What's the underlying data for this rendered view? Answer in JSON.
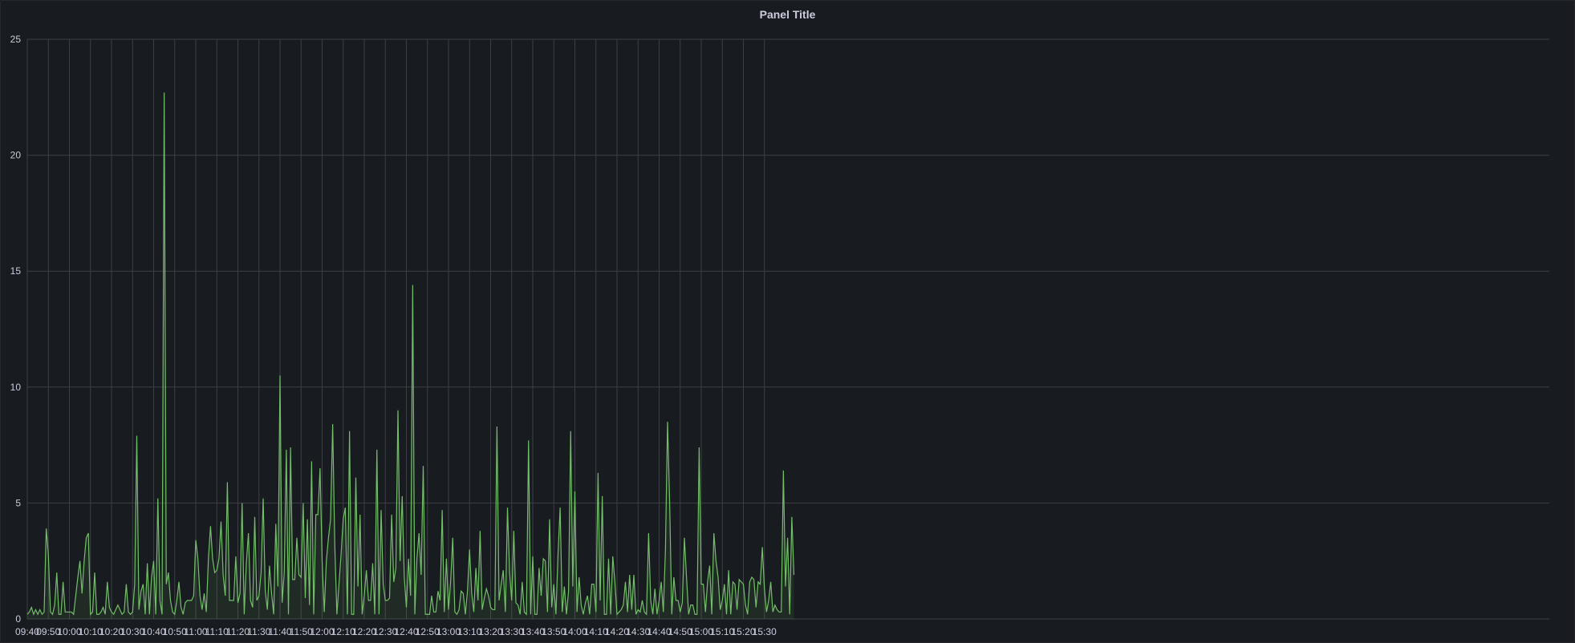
{
  "panel": {
    "title": "Panel Title"
  },
  "chart_data": {
    "type": "area",
    "title": "Panel Title",
    "xlabel": "",
    "ylabel": "",
    "x_start": "09:40",
    "x_end": "15:40",
    "sample_interval_minutes": 1,
    "ylim": [
      0,
      25
    ],
    "yticks": [
      0,
      5,
      10,
      15,
      20,
      25
    ],
    "xticks": [
      "09:40",
      "09:50",
      "10:00",
      "10:10",
      "10:20",
      "10:30",
      "10:40",
      "10:50",
      "11:00",
      "11:10",
      "11:20",
      "11:30",
      "11:40",
      "11:50",
      "12:00",
      "12:10",
      "12:20",
      "12:30",
      "12:40",
      "12:50",
      "13:00",
      "13:10",
      "13:20",
      "13:30",
      "13:40",
      "13:50",
      "14:00",
      "14:10",
      "14:20",
      "14:30",
      "14:40",
      "14:50",
      "15:00",
      "15:10",
      "15:20",
      "15:30"
    ],
    "grid": true,
    "legend": "none",
    "series_color": "#73bf69",
    "fill_color": "rgba(115,191,105,0.10)",
    "series": [
      {
        "values": [
          0.2,
          0.3,
          0.5,
          0.2,
          0.4,
          0.2,
          0.4,
          0.2,
          0.3,
          3.9,
          2.8,
          0.3,
          0.2,
          0.6,
          2.0,
          0.2,
          0.2,
          1.6,
          0.3,
          0.3,
          0.3,
          0.3,
          0.2,
          1.0,
          1.8,
          2.5,
          1.1,
          2.5,
          3.5,
          3.7,
          0.2,
          0.3,
          2.0,
          0.2,
          0.2,
          0.3,
          0.5,
          0.2,
          1.6,
          0.5,
          0.3,
          0.2,
          0.4,
          0.6,
          0.4,
          0.2,
          0.3,
          1.5,
          0.3,
          0.2,
          0.3,
          1.5,
          7.9,
          0.4,
          1.2,
          1.5,
          0.2,
          2.4,
          0.2,
          1.8,
          2.5,
          0.2,
          5.2,
          0.8,
          0.2,
          22.7,
          1.5,
          2.0,
          0.8,
          0.3,
          0.2,
          0.8,
          1.6,
          0.5,
          0.2,
          0.7,
          0.8,
          0.8,
          0.8,
          1.0,
          3.4,
          2.6,
          1.0,
          0.4,
          1.1,
          0.3,
          2.6,
          4.0,
          2.6,
          2.0,
          2.1,
          2.6,
          4.2,
          1.9,
          1.0,
          5.9,
          0.8,
          0.8,
          0.8,
          2.7,
          0.7,
          1.1,
          5.0,
          0.2,
          2.4,
          3.7,
          0.8,
          0.5,
          4.4,
          0.8,
          1.0,
          2.0,
          5.2,
          1.2,
          0.4,
          2.3,
          1.1,
          0.2,
          4.1,
          1.4,
          10.5,
          0.7,
          2.0,
          7.3,
          0.2,
          7.4,
          1.7,
          1.7,
          3.5,
          1.9,
          1.8,
          5.0,
          0.9,
          4.3,
          0.6,
          6.8,
          0.2,
          4.5,
          4.5,
          6.5,
          2.5,
          0.3,
          2.5,
          3.5,
          4.3,
          8.4,
          3.2,
          0.2,
          1.5,
          2.8,
          4.3,
          4.8,
          0.2,
          8.1,
          0.2,
          0.2,
          6.1,
          1.4,
          4.5,
          0.2,
          1.0,
          2.1,
          0.8,
          0.8,
          2.4,
          0.2,
          7.3,
          0.2,
          4.7,
          1.5,
          0.8,
          0.8,
          0.9,
          4.5,
          1.6,
          2.2,
          9.0,
          2.5,
          5.3,
          1.8,
          0.5,
          2.6,
          1.0,
          14.4,
          0.2,
          2.6,
          3.7,
          1.9,
          6.6,
          0.2,
          0.2,
          0.2,
          1.0,
          0.3,
          0.3,
          1.2,
          0.8,
          4.7,
          0.3,
          2.6,
          0.4,
          1.6,
          3.5,
          0.3,
          0.2,
          0.4,
          1.2,
          1.1,
          0.2,
          1.2,
          3.0,
          1.1,
          0.3,
          2.2,
          0.8,
          3.8,
          0.4,
          0.9,
          1.3,
          1.0,
          0.5,
          0.4,
          0.4,
          8.3,
          0.8,
          1.5,
          2.1,
          0.3,
          4.8,
          2.0,
          0.8,
          3.8,
          0.7,
          0.6,
          0.2,
          1.6,
          0.3,
          0.2,
          7.7,
          0.2,
          2.7,
          0.2,
          0.2,
          2.2,
          1.0,
          2.6,
          2.5,
          0.3,
          4.3,
          0.5,
          1.5,
          0.2,
          2.8,
          4.8,
          0.3,
          1.4,
          0.2,
          1.2,
          8.1,
          1.4,
          5.5,
          0.3,
          1.8,
          0.6,
          0.2,
          0.7,
          1.0,
          0.2,
          1.5,
          1.5,
          0.3,
          6.3,
          0.8,
          5.3,
          0.2,
          0.2,
          2.6,
          0.2,
          2.7,
          1.6,
          0.2,
          0.3,
          0.4,
          0.6,
          1.6,
          0.3,
          1.9,
          0.4,
          1.9,
          0.2,
          0.4,
          0.3,
          0.8,
          0.3,
          0.2,
          3.7,
          0.8,
          0.2,
          1.3,
          0.2,
          0.8,
          1.6,
          0.3,
          3.0,
          8.5,
          5.0,
          0.2,
          1.8,
          0.8,
          0.8,
          0.3,
          0.7,
          3.5,
          1.8,
          0.2,
          0.6,
          0.6,
          0.2,
          0.2,
          7.4,
          1.5,
          1.5,
          0.3,
          1.6,
          2.3,
          0.2,
          3.7,
          2.5,
          1.8,
          0.4,
          0.8,
          1.5,
          0.2,
          2.1,
          0.2,
          1.6,
          1.5,
          0.4,
          1.7,
          1.6,
          1.5,
          0.6,
          0.2,
          1.6,
          1.8,
          1.7,
          0.5,
          1.6,
          1.5,
          3.1,
          1.3,
          0.3,
          0.8,
          1.6,
          0.3,
          0.6,
          0.4,
          0.3,
          0.3,
          6.4,
          1.4,
          3.5,
          0.2,
          4.4,
          1.9
        ]
      }
    ]
  }
}
